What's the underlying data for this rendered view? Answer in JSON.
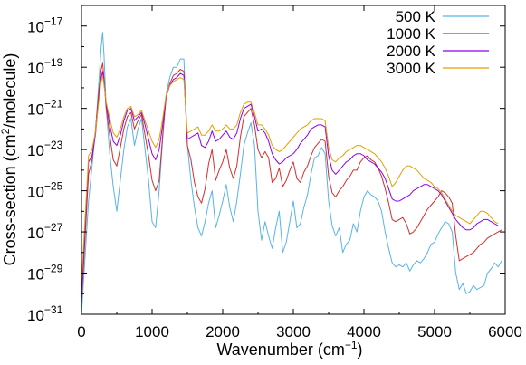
{
  "chart_data": {
    "type": "line",
    "title": "",
    "xlabel": "Wavenumber (cm",
    "xlabel_sup": "−1",
    "xlabel_end": ")",
    "ylabel": "Cross-section (cm",
    "ylabel_sup": "2",
    "ylabel_end": "/molecule)",
    "xlim": [
      0,
      6000
    ],
    "ylim_log10": [
      -31,
      -16
    ],
    "y_scale": "log",
    "x_ticks": [
      {
        "value": 0,
        "label": "0"
      },
      {
        "value": 1000,
        "label": "1000"
      },
      {
        "value": 2000,
        "label": "2000"
      },
      {
        "value": 3000,
        "label": "3000"
      },
      {
        "value": 4000,
        "label": "4000"
      },
      {
        "value": 5000,
        "label": "5000"
      },
      {
        "value": 6000,
        "label": "6000"
      }
    ],
    "y_ticks": [
      {
        "exp": -17,
        "base": "10",
        "sup": "−17"
      },
      {
        "exp": -19,
        "base": "10",
        "sup": "−19"
      },
      {
        "exp": -21,
        "base": "10",
        "sup": "−21"
      },
      {
        "exp": -23,
        "base": "10",
        "sup": "−23"
      },
      {
        "exp": -25,
        "base": "10",
        "sup": "−25"
      },
      {
        "exp": -27,
        "base": "10",
        "sup": "−27"
      },
      {
        "exp": -29,
        "base": "10",
        "sup": "−29"
      },
      {
        "exp": -31,
        "base": "10",
        "sup": "−31"
      }
    ],
    "grid": false,
    "legend_position": "top-right",
    "series": [
      {
        "name": "500 K",
        "color": "#56b4e9",
        "x": [
          0,
          100,
          150,
          200,
          250,
          280,
          300,
          320,
          350,
          400,
          450,
          500,
          550,
          600,
          650,
          700,
          750,
          800,
          850,
          900,
          950,
          1000,
          1050,
          1100,
          1150,
          1200,
          1250,
          1300,
          1350,
          1400,
          1450,
          1500,
          1550,
          1600,
          1650,
          1700,
          1750,
          1800,
          1850,
          1900,
          1950,
          2000,
          2050,
          2100,
          2150,
          2200,
          2250,
          2300,
          2350,
          2400,
          2450,
          2500,
          2550,
          2600,
          2650,
          2700,
          2750,
          2800,
          2850,
          2900,
          2950,
          3000,
          3050,
          3100,
          3150,
          3200,
          3250,
          3300,
          3350,
          3400,
          3450,
          3500,
          3550,
          3600,
          3650,
          3700,
          3750,
          3800,
          3850,
          3900,
          3950,
          4000,
          4050,
          4100,
          4150,
          4200,
          4250,
          4300,
          4350,
          4400,
          4450,
          4500,
          4550,
          4600,
          4650,
          4700,
          4750,
          4800,
          4850,
          4900,
          4950,
          5000,
          5050,
          5100,
          5150,
          5200,
          5250,
          5300,
          5350,
          5400,
          5450,
          5500,
          5550,
          5600,
          5650,
          5700,
          5750,
          5800,
          5850,
          5900,
          5950,
          6000
        ],
        "log10_y": [
          -31.0,
          -25.5,
          -23.8,
          -22.0,
          -19.5,
          -18.0,
          -17.3,
          -18.5,
          -21.0,
          -23.2,
          -24.8,
          -26.0,
          -24.5,
          -23.0,
          -21.9,
          -21.5,
          -22.8,
          -22.0,
          -21.5,
          -23.0,
          -24.5,
          -26.5,
          -26.8,
          -25.0,
          -22.5,
          -20.3,
          -19.5,
          -19.0,
          -19.0,
          -18.6,
          -18.6,
          -22.8,
          -24.5,
          -25.8,
          -26.8,
          -27.2,
          -26.5,
          -25.6,
          -25.0,
          -26.8,
          -26.2,
          -25.5,
          -24.7,
          -25.8,
          -26.5,
          -25.5,
          -24.2,
          -22.8,
          -22.2,
          -21.7,
          -22.8,
          -26.0,
          -27.4,
          -26.5,
          -27.2,
          -27.8,
          -26.8,
          -26.0,
          -28.0,
          -27.5,
          -26.5,
          -25.5,
          -26.8,
          -26.6,
          -25.8,
          -25.2,
          -24.2,
          -23.4,
          -23.3,
          -22.9,
          -23.2,
          -25.5,
          -26.7,
          -27.2,
          -26.8,
          -28.0,
          -27.6,
          -27.4,
          -26.6,
          -27.0,
          -26.0,
          -25.3,
          -25.0,
          -25.2,
          -25.3,
          -25.5,
          -26.0,
          -27.0,
          -27.8,
          -28.5,
          -28.7,
          -28.6,
          -28.7,
          -28.5,
          -28.9,
          -28.6,
          -28.4,
          -28.5,
          -28.3,
          -28.0,
          -27.6,
          -27.5,
          -27.1,
          -26.8,
          -26.5,
          -26.6,
          -27.0,
          -29.0,
          -29.8,
          -29.5,
          -30.0,
          -29.9,
          -29.6,
          -29.8,
          -29.7,
          -29.6,
          -29.0,
          -28.8,
          -28.5,
          -28.7,
          -28.4
        ]
      },
      {
        "name": "1000 K",
        "color": "#d62e2e",
        "x": [
          0,
          100,
          150,
          200,
          250,
          280,
          300,
          320,
          350,
          400,
          450,
          500,
          550,
          600,
          650,
          700,
          750,
          800,
          850,
          900,
          950,
          1000,
          1050,
          1100,
          1150,
          1200,
          1250,
          1300,
          1350,
          1400,
          1450,
          1500,
          1550,
          1600,
          1650,
          1700,
          1750,
          1800,
          1850,
          1900,
          1950,
          2000,
          2050,
          2100,
          2150,
          2200,
          2250,
          2300,
          2350,
          2400,
          2450,
          2500,
          2550,
          2600,
          2650,
          2700,
          2750,
          2800,
          2850,
          2900,
          2950,
          3000,
          3050,
          3100,
          3150,
          3200,
          3250,
          3300,
          3350,
          3400,
          3450,
          3500,
          3550,
          3600,
          3650,
          3700,
          3750,
          3800,
          3850,
          3900,
          3950,
          4000,
          4050,
          4100,
          4150,
          4200,
          4250,
          4300,
          4350,
          4400,
          4450,
          4500,
          4550,
          4600,
          4650,
          4700,
          4750,
          4800,
          4850,
          4900,
          4950,
          5000,
          5050,
          5100,
          5150,
          5200,
          5250,
          5300,
          5350,
          5400,
          5450,
          5500,
          5550,
          5600,
          5650,
          5700,
          5750,
          5800,
          5850,
          5900,
          5950,
          6000
        ],
        "log10_y": [
          -30.5,
          -24.2,
          -23.5,
          -22.0,
          -20.0,
          -19.1,
          -18.8,
          -19.6,
          -21.0,
          -22.3,
          -23.5,
          -23.8,
          -22.9,
          -22.0,
          -21.4,
          -21.2,
          -22.0,
          -21.6,
          -21.3,
          -22.3,
          -23.3,
          -24.5,
          -25.0,
          -24.5,
          -22.3,
          -20.4,
          -19.8,
          -19.4,
          -19.3,
          -19.1,
          -19.2,
          -22.8,
          -23.5,
          -24.6,
          -25.3,
          -25.6,
          -24.9,
          -23.7,
          -23.0,
          -24.5,
          -24.0,
          -23.6,
          -23.0,
          -23.9,
          -24.4,
          -23.8,
          -22.4,
          -21.4,
          -21.2,
          -21.0,
          -21.8,
          -23.0,
          -23.4,
          -23.1,
          -23.4,
          -24.6,
          -24.4,
          -23.9,
          -24.8,
          -24.5,
          -24.0,
          -23.6,
          -24.4,
          -24.6,
          -24.1,
          -23.8,
          -23.3,
          -22.9,
          -22.7,
          -22.5,
          -22.6,
          -24.3,
          -25.1,
          -25.3,
          -25.0,
          -24.8,
          -24.5,
          -24.3,
          -24.0,
          -24.0,
          -23.6,
          -23.4,
          -23.3,
          -23.5,
          -23.6,
          -23.9,
          -24.3,
          -24.9,
          -25.6,
          -26.4,
          -26.5,
          -26.4,
          -26.3,
          -26.6,
          -27.1,
          -27.0,
          -26.8,
          -26.5,
          -26.2,
          -25.9,
          -25.7,
          -25.5,
          -25.3,
          -25.0,
          -25.1,
          -25.3,
          -25.6,
          -27.2,
          -28.4,
          -28.3,
          -28.2,
          -28.1,
          -28.0,
          -27.8,
          -27.6,
          -27.5,
          -27.3,
          -27.2,
          -27.1,
          -27.0,
          -26.9
        ]
      },
      {
        "name": "2000 K",
        "color": "#8c00f0",
        "x": [
          0,
          100,
          150,
          200,
          250,
          280,
          300,
          320,
          350,
          400,
          450,
          500,
          550,
          600,
          650,
          700,
          750,
          800,
          850,
          900,
          950,
          1000,
          1050,
          1100,
          1150,
          1200,
          1250,
          1300,
          1350,
          1400,
          1450,
          1500,
          1550,
          1600,
          1650,
          1700,
          1750,
          1800,
          1850,
          1900,
          1950,
          2000,
          2050,
          2100,
          2150,
          2200,
          2250,
          2300,
          2350,
          2400,
          2450,
          2500,
          2550,
          2600,
          2650,
          2700,
          2750,
          2800,
          2850,
          2900,
          2950,
          3000,
          3050,
          3100,
          3150,
          3200,
          3250,
          3300,
          3350,
          3400,
          3450,
          3500,
          3550,
          3600,
          3650,
          3700,
          3750,
          3800,
          3850,
          3900,
          3950,
          4000,
          4050,
          4100,
          4150,
          4200,
          4250,
          4300,
          4350,
          4400,
          4450,
          4500,
          4550,
          4600,
          4650,
          4700,
          4750,
          4800,
          4850,
          4900,
          4950,
          5000,
          5050,
          5100,
          5150,
          5200,
          5250,
          5300,
          5350,
          5400,
          5450,
          5500,
          5550,
          5600,
          5650,
          5700,
          5750,
          5800,
          5850,
          5900,
          5950,
          6000
        ],
        "log10_y": [
          -30.0,
          -23.6,
          -23.3,
          -22.2,
          -20.3,
          -19.5,
          -19.2,
          -19.8,
          -20.8,
          -21.8,
          -22.6,
          -22.8,
          -22.3,
          -21.6,
          -21.1,
          -21.0,
          -21.6,
          -21.4,
          -21.2,
          -21.8,
          -22.5,
          -23.2,
          -23.5,
          -23.0,
          -21.8,
          -20.4,
          -19.9,
          -19.6,
          -19.5,
          -19.3,
          -19.4,
          -22.5,
          -22.4,
          -22.3,
          -22.2,
          -22.8,
          -22.9,
          -22.6,
          -22.1,
          -22.6,
          -22.5,
          -22.3,
          -22.1,
          -22.4,
          -22.5,
          -22.2,
          -21.5,
          -21.0,
          -20.9,
          -20.8,
          -21.4,
          -22.1,
          -22.0,
          -22.2,
          -22.6,
          -23.2,
          -23.5,
          -23.7,
          -23.6,
          -23.4,
          -23.3,
          -23.2,
          -23.0,
          -22.7,
          -22.5,
          -22.3,
          -22.0,
          -21.9,
          -21.8,
          -21.8,
          -21.9,
          -23.3,
          -24.0,
          -24.2,
          -24.0,
          -23.8,
          -23.6,
          -23.5,
          -23.3,
          -23.2,
          -23.2,
          -23.3,
          -23.5,
          -23.6,
          -23.7,
          -23.9,
          -24.1,
          -24.4,
          -24.9,
          -25.4,
          -25.5,
          -25.5,
          -25.4,
          -25.3,
          -25.2,
          -25.0,
          -24.9,
          -24.8,
          -24.7,
          -24.7,
          -24.8,
          -24.9,
          -25.0,
          -25.2,
          -25.5,
          -25.8,
          -26.1,
          -26.4,
          -26.6,
          -26.8,
          -26.9,
          -26.9,
          -26.8,
          -26.6,
          -26.5,
          -26.4,
          -26.4,
          -26.5,
          -26.6,
          -26.7
        ]
      },
      {
        "name": "3000 K",
        "color": "#e69f00",
        "x": [
          0,
          100,
          150,
          200,
          250,
          280,
          300,
          320,
          350,
          400,
          450,
          500,
          550,
          600,
          650,
          700,
          750,
          800,
          850,
          900,
          950,
          1000,
          1050,
          1100,
          1150,
          1200,
          1250,
          1300,
          1350,
          1400,
          1450,
          1500,
          1550,
          1600,
          1650,
          1700,
          1750,
          1800,
          1850,
          1900,
          1950,
          2000,
          2050,
          2100,
          2150,
          2200,
          2250,
          2300,
          2350,
          2400,
          2450,
          2500,
          2550,
          2600,
          2650,
          2700,
          2750,
          2800,
          2850,
          2900,
          2950,
          3000,
          3050,
          3100,
          3150,
          3200,
          3250,
          3300,
          3350,
          3400,
          3450,
          3500,
          3550,
          3600,
          3650,
          3700,
          3750,
          3800,
          3850,
          3900,
          3950,
          4000,
          4050,
          4100,
          4150,
          4200,
          4250,
          4300,
          4350,
          4400,
          4450,
          4500,
          4550,
          4600,
          4650,
          4700,
          4750,
          4800,
          4850,
          4900,
          4950,
          5000,
          5050,
          5100,
          5150,
          5200,
          5250,
          5300,
          5350,
          5400,
          5450,
          5500,
          5550,
          5600,
          5650,
          5700,
          5750,
          5800,
          5850,
          5900,
          5950,
          6000
        ],
        "log10_y": [
          -29.5,
          -23.3,
          -23.0,
          -22.1,
          -20.5,
          -19.7,
          -19.4,
          -19.9,
          -20.7,
          -21.5,
          -22.2,
          -22.4,
          -22.0,
          -21.4,
          -21.0,
          -20.9,
          -21.4,
          -21.3,
          -21.1,
          -21.6,
          -22.1,
          -22.6,
          -22.9,
          -22.5,
          -21.5,
          -20.3,
          -19.9,
          -19.7,
          -19.6,
          -19.5,
          -19.6,
          -22.2,
          -22.1,
          -22.0,
          -21.9,
          -22.3,
          -22.3,
          -22.1,
          -21.8,
          -22.1,
          -22.1,
          -22.0,
          -21.8,
          -22.0,
          -22.0,
          -21.8,
          -21.2,
          -20.8,
          -20.7,
          -20.7,
          -21.2,
          -21.8,
          -21.8,
          -22.0,
          -22.3,
          -22.8,
          -23.0,
          -23.1,
          -23.0,
          -22.8,
          -22.6,
          -22.4,
          -22.2,
          -22.0,
          -21.9,
          -21.8,
          -21.6,
          -21.5,
          -21.5,
          -21.5,
          -21.6,
          -22.9,
          -23.5,
          -23.6,
          -23.4,
          -23.3,
          -23.1,
          -23.0,
          -22.9,
          -22.8,
          -22.8,
          -22.9,
          -23.0,
          -23.1,
          -23.2,
          -23.4,
          -23.6,
          -23.9,
          -24.3,
          -24.8,
          -24.6,
          -24.3,
          -24.0,
          -23.8,
          -23.8,
          -23.9,
          -24.0,
          -24.2,
          -24.4,
          -24.5,
          -24.6,
          -24.8,
          -24.9,
          -25.1,
          -25.4,
          -25.7,
          -26.0,
          -26.2,
          -26.3,
          -26.4,
          -26.5,
          -26.6,
          -26.4,
          -26.2,
          -26.0,
          -26.0,
          -26.1,
          -26.3,
          -26.5,
          -26.6
        ]
      }
    ]
  }
}
